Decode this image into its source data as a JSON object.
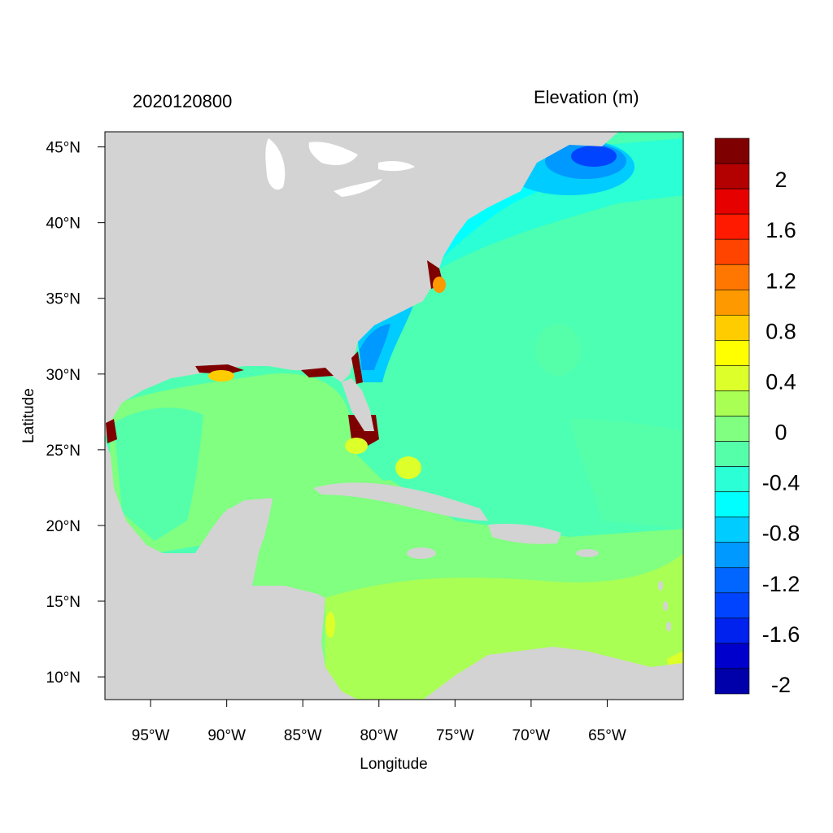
{
  "header": {
    "date": "2020120800",
    "variable": "Elevation (m)"
  },
  "axes": {
    "xlabel": "Longitude",
    "ylabel": "Latitude",
    "lon_range": [
      -98,
      -60
    ],
    "lat_range": [
      8.5,
      46
    ],
    "lon_ticks": [
      {
        "value": -95,
        "label": "95°W"
      },
      {
        "value": -90,
        "label": "90°W"
      },
      {
        "value": -85,
        "label": "85°W"
      },
      {
        "value": -80,
        "label": "80°W"
      },
      {
        "value": -75,
        "label": "75°W"
      },
      {
        "value": -70,
        "label": "70°W"
      },
      {
        "value": -65,
        "label": "65°W"
      }
    ],
    "lat_ticks": [
      {
        "value": 45,
        "label": "45°N"
      },
      {
        "value": 40,
        "label": "40°N"
      },
      {
        "value": 35,
        "label": "35°N"
      },
      {
        "value": 30,
        "label": "30°N"
      },
      {
        "value": 25,
        "label": "25°N"
      },
      {
        "value": 20,
        "label": "20°N"
      },
      {
        "value": 15,
        "label": "15°N"
      },
      {
        "value": 10,
        "label": "10°N"
      }
    ]
  },
  "colorbar": {
    "labels": [
      "2",
      "1.6",
      "1.2",
      "0.8",
      "0.4",
      "0",
      "-0.4",
      "-0.8",
      "-1.2",
      "-1.6",
      "-2"
    ],
    "colors": [
      "#7f0000",
      "#b30000",
      "#e60000",
      "#ff1a00",
      "#ff4400",
      "#ff7700",
      "#ff9900",
      "#ffcc00",
      "#ffff00",
      "#ddff2a",
      "#aaff55",
      "#80ff80",
      "#55ffaa",
      "#2affd5",
      "#00ffff",
      "#00ccff",
      "#0099ff",
      "#0066ff",
      "#0044ff",
      "#0022ee",
      "#0000cc",
      "#0000aa"
    ]
  },
  "chart_data": {
    "type": "heatmap",
    "title": "2020120800",
    "subtitle": "Elevation (m)",
    "xlabel": "Longitude",
    "ylabel": "Latitude",
    "xlim": [
      -98,
      -60
    ],
    "ylim": [
      8.5,
      46
    ],
    "levels": [
      -2,
      -1.8,
      -1.6,
      -1.4,
      -1.2,
      -1.0,
      -0.8,
      -0.6,
      -0.4,
      -0.2,
      0,
      0.2,
      0.4,
      0.6,
      0.8,
      1.0,
      1.2,
      1.4,
      1.6,
      1.8,
      2.0
    ],
    "colors": {
      "land": "#d3d3d3",
      "high": "#7f0000",
      "low": "#0000aa"
    }
  }
}
